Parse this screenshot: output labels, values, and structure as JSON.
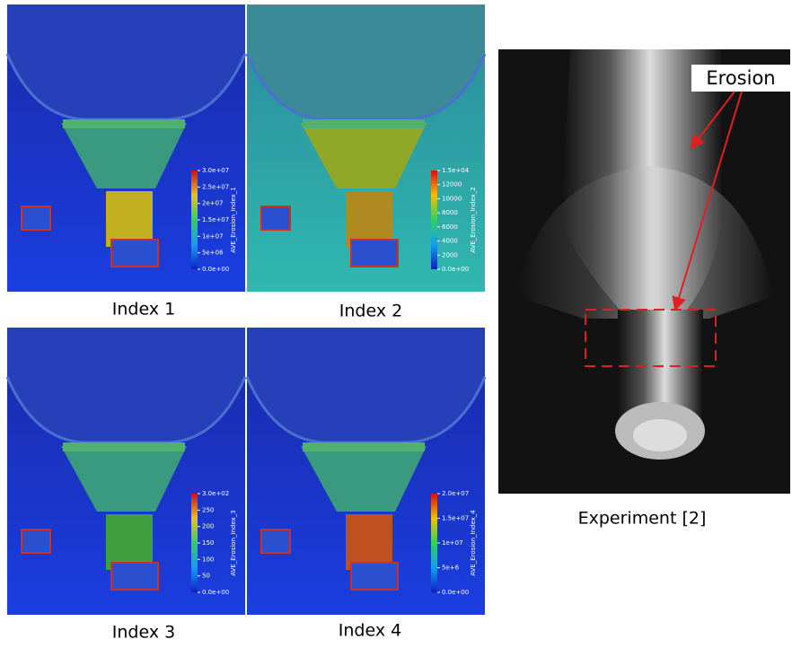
{
  "panels": [
    {
      "caption": "Index 1",
      "colorbar_title": "AVE_Erosion_Index_1",
      "ticks": [
        "3.0e+07",
        "2.5e+07",
        "2e+07",
        "1.5e+07",
        "1e+07",
        "5e+06",
        "0.0e+00"
      ]
    },
    {
      "caption": "Index 2",
      "colorbar_title": "AVE_Erosion_Index_2",
      "ticks": [
        "1.5e+04",
        "12000",
        "10000",
        "8000",
        "6000",
        "4000",
        "2000",
        "0.0e+00"
      ]
    },
    {
      "caption": "Index 3",
      "colorbar_title": "AVE_Erosion_Index_3",
      "ticks": [
        "3.0e+02",
        "250",
        "200",
        "150",
        "100",
        "50",
        "0.0e+00"
      ]
    },
    {
      "caption": "Index 4",
      "colorbar_title": "AVE_Erosion_Index_4",
      "ticks": [
        "2.0e+07",
        "1.5e+07",
        "1e+07",
        "5e+6",
        "0.0e+00"
      ]
    }
  ],
  "experiment": {
    "caption": "Experiment [2]",
    "annotation": "Erosion"
  }
}
